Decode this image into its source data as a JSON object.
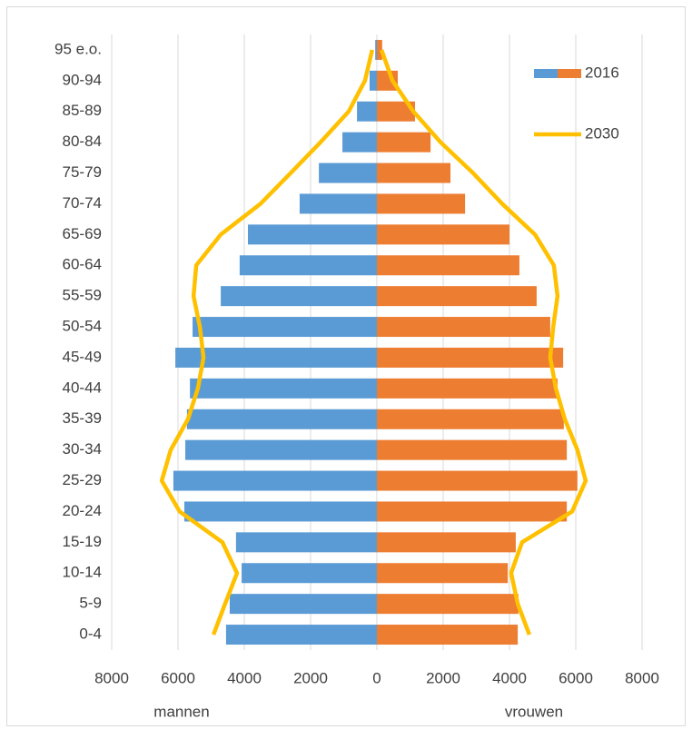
{
  "chart_data": {
    "type": "pyramid",
    "categories": [
      "0-4",
      "5-9",
      "10-14",
      "15-19",
      "20-24",
      "25-29",
      "30-34",
      "35-39",
      "40-44",
      "45-49",
      "50-54",
      "55-59",
      "60-64",
      "65-69",
      "70-74",
      "75-79",
      "80-84",
      "85-89",
      "90-94",
      "95 e.o."
    ],
    "groups": [
      "mannen",
      "vrouwen"
    ],
    "series": [
      {
        "name": "2016",
        "type": "bar",
        "colors": [
          "#5b9bd5",
          "#ed7d31"
        ],
        "values": [
          [
            -4550,
            -4440,
            -4080,
            -4250,
            -5810,
            -6140,
            -5780,
            -5730,
            -5640,
            -6080,
            -5560,
            -4710,
            -4140,
            -3890,
            -2330,
            -1750,
            -1040,
            -600,
            -220,
            -50
          ],
          [
            4250,
            4270,
            3950,
            4190,
            5730,
            6050,
            5730,
            5640,
            5450,
            5620,
            5230,
            4820,
            4300,
            4000,
            2660,
            2220,
            1620,
            1150,
            630,
            160
          ]
        ]
      },
      {
        "name": "2030",
        "type": "line",
        "color": "#ffc000",
        "values": [
          [
            -4930,
            -4580,
            -4220,
            -4660,
            -5950,
            -6490,
            -6220,
            -5700,
            -5400,
            -5230,
            -5340,
            -5530,
            -5450,
            -4710,
            -3510,
            -2600,
            -1700,
            -850,
            -360,
            -140
          ],
          [
            4600,
            4250,
            4050,
            4380,
            5890,
            6300,
            6050,
            5670,
            5400,
            5230,
            5320,
            5450,
            5340,
            4770,
            3780,
            2900,
            1920,
            1100,
            470,
            140
          ]
        ]
      }
    ],
    "xlim": [
      -8000,
      8000
    ],
    "xticks": [
      {
        "value": -8000,
        "label": "8000"
      },
      {
        "value": -6000,
        "label": "6000"
      },
      {
        "value": -4000,
        "label": "4000"
      },
      {
        "value": -2000,
        "label": "2000"
      },
      0,
      2000,
      4000,
      6000,
      8000
    ],
    "grid": true
  }
}
